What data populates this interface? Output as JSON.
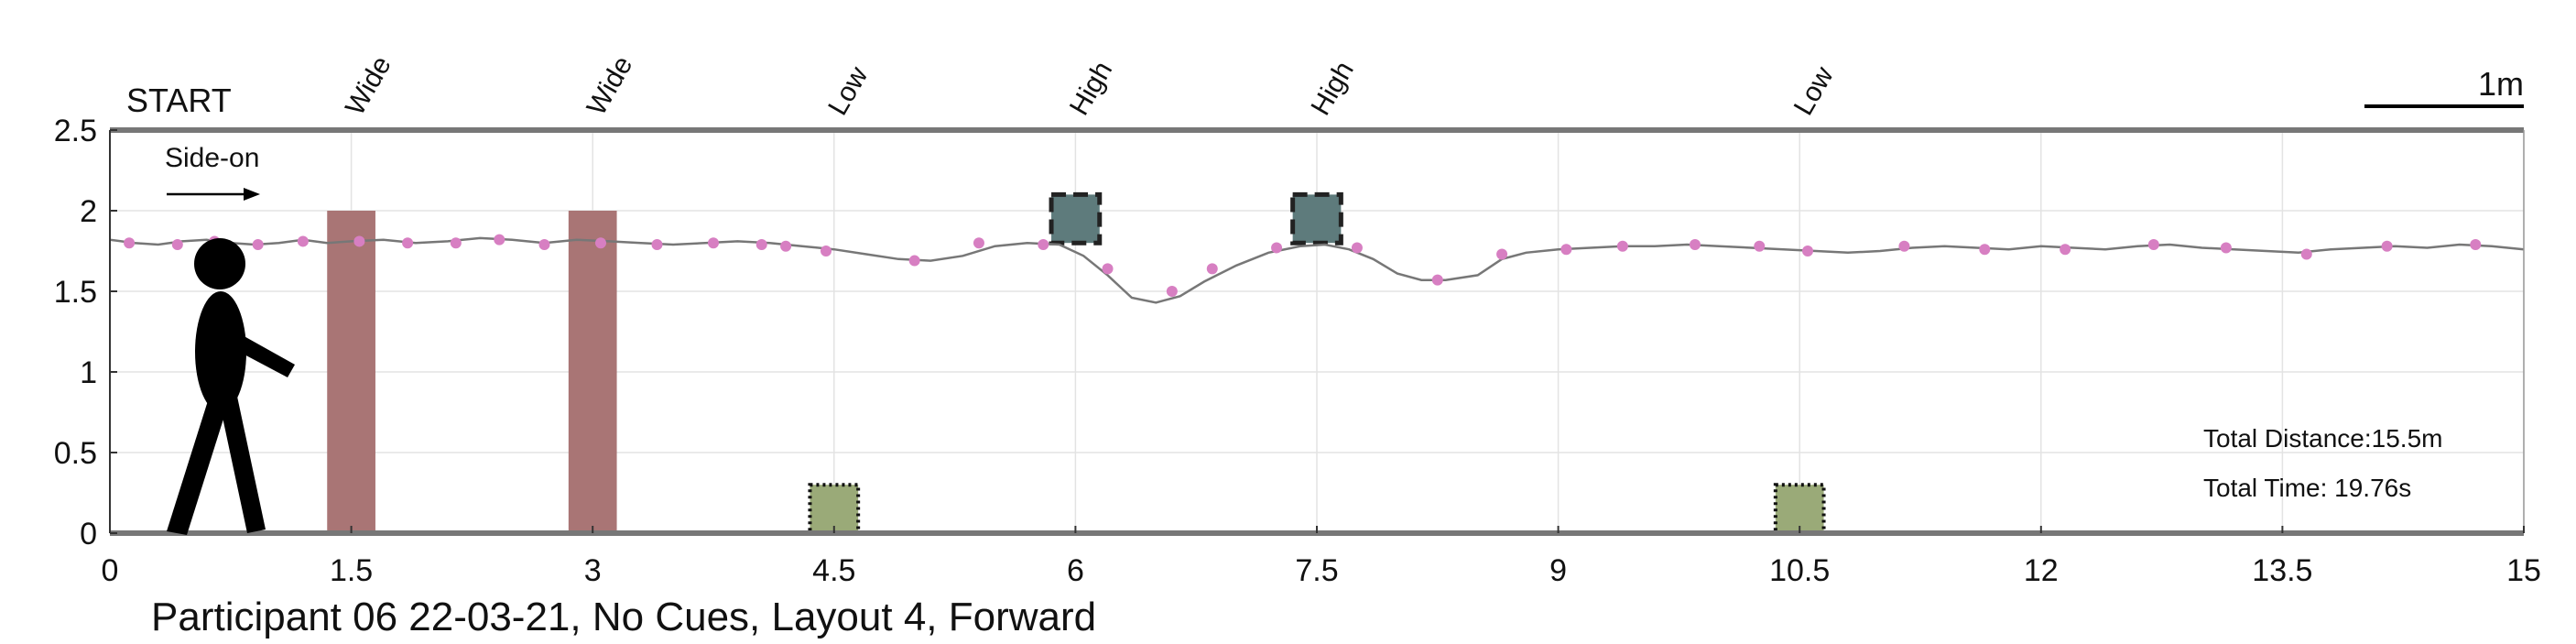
{
  "chart_data": {
    "type": "line",
    "caption": "Participant 06 22-03-21, No Cues, Layout 4, Forward",
    "start_label": "START",
    "direction_label": "Side-on",
    "scale_label": "1m",
    "total_distance": "Total Distance:15.5m",
    "total_time": "Total Time: 19.76s",
    "xlim": [
      0,
      15
    ],
    "ylim": [
      0,
      2.5
    ],
    "x_ticks": [
      0,
      1.5,
      3,
      4.5,
      6,
      7.5,
      9,
      10.5,
      12,
      13.5,
      15
    ],
    "x_tick_labels": [
      "0",
      "1.5",
      "3",
      "4.5",
      "6",
      "7.5",
      "9",
      "10.5",
      "12",
      "13.5",
      "15"
    ],
    "y_ticks": [
      0,
      0.5,
      1,
      1.5,
      2,
      2.5
    ],
    "y_tick_labels": [
      "0",
      "0.5",
      "1",
      "1.5",
      "2",
      "2.5"
    ],
    "grid": true,
    "obstacles": [
      {
        "label": "Wide",
        "type": "wide",
        "x_center": 1.5,
        "width": 0.3,
        "y_bottom": 0,
        "y_top": 2.0,
        "color": "#a97575"
      },
      {
        "label": "Wide",
        "type": "wide",
        "x_center": 3.0,
        "width": 0.3,
        "y_bottom": 0,
        "y_top": 2.0,
        "color": "#a97575"
      },
      {
        "label": "Low",
        "type": "low",
        "x_center": 4.5,
        "width": 0.3,
        "y_bottom": 0,
        "y_top": 0.3,
        "color": "#9aaa78"
      },
      {
        "label": "High",
        "type": "high",
        "x_center": 6.0,
        "width": 0.3,
        "y_bottom": 1.8,
        "y_top": 2.1,
        "color": "#5e7b7c"
      },
      {
        "label": "High",
        "type": "high",
        "x_center": 7.5,
        "width": 0.3,
        "y_bottom": 1.8,
        "y_top": 2.1,
        "color": "#5e7b7c"
      },
      {
        "label": "Low",
        "type": "low",
        "x_center": 10.5,
        "width": 0.3,
        "y_bottom": 0,
        "y_top": 0.3,
        "color": "#9aaa78"
      }
    ],
    "trajectory": {
      "color": "#777777",
      "x": [
        0.0,
        0.15,
        0.3,
        0.45,
        0.6,
        0.75,
        0.9,
        1.05,
        1.2,
        1.35,
        1.5,
        1.7,
        1.9,
        2.1,
        2.3,
        2.5,
        2.7,
        2.9,
        3.1,
        3.3,
        3.5,
        3.7,
        3.9,
        4.1,
        4.3,
        4.5,
        4.7,
        4.9,
        5.1,
        5.3,
        5.5,
        5.7,
        5.9,
        6.05,
        6.2,
        6.35,
        6.5,
        6.65,
        6.8,
        7.0,
        7.2,
        7.4,
        7.55,
        7.7,
        7.85,
        8.0,
        8.15,
        8.3,
        8.5,
        8.65,
        8.8,
        9.0,
        9.2,
        9.4,
        9.6,
        9.8,
        10.0,
        10.2,
        10.4,
        10.6,
        10.8,
        11.0,
        11.2,
        11.4,
        11.6,
        11.8,
        12.0,
        12.2,
        12.4,
        12.6,
        12.8,
        13.0,
        13.2,
        13.4,
        13.6,
        13.8,
        14.0,
        14.2,
        14.4,
        14.6,
        14.8,
        15.0
      ],
      "y": [
        1.82,
        1.8,
        1.79,
        1.81,
        1.82,
        1.8,
        1.79,
        1.8,
        1.82,
        1.8,
        1.81,
        1.82,
        1.8,
        1.81,
        1.83,
        1.82,
        1.8,
        1.82,
        1.81,
        1.8,
        1.79,
        1.8,
        1.81,
        1.8,
        1.78,
        1.76,
        1.73,
        1.7,
        1.69,
        1.72,
        1.78,
        1.8,
        1.79,
        1.72,
        1.6,
        1.46,
        1.43,
        1.47,
        1.56,
        1.66,
        1.74,
        1.78,
        1.79,
        1.76,
        1.7,
        1.61,
        1.57,
        1.57,
        1.6,
        1.7,
        1.74,
        1.76,
        1.77,
        1.78,
        1.78,
        1.79,
        1.78,
        1.77,
        1.76,
        1.75,
        1.74,
        1.75,
        1.77,
        1.78,
        1.77,
        1.76,
        1.78,
        1.77,
        1.76,
        1.78,
        1.79,
        1.77,
        1.76,
        1.75,
        1.74,
        1.76,
        1.77,
        1.78,
        1.77,
        1.79,
        1.78,
        1.76
      ]
    },
    "footsteps": {
      "color": "#d77fc2",
      "x": [
        0.12,
        0.42,
        0.65,
        0.92,
        1.2,
        1.55,
        1.85,
        2.15,
        2.42,
        2.7,
        3.05,
        3.4,
        3.75,
        4.05,
        4.2,
        4.45,
        5.0,
        5.4,
        5.8,
        6.2,
        6.6,
        6.85,
        7.25,
        7.75,
        8.25,
        8.65,
        9.05,
        9.4,
        9.85,
        10.25,
        10.55,
        11.15,
        11.65,
        12.15,
        12.7,
        13.15,
        13.65,
        14.15,
        14.7
      ],
      "y": [
        1.8,
        1.79,
        1.81,
        1.79,
        1.81,
        1.81,
        1.8,
        1.8,
        1.82,
        1.79,
        1.8,
        1.79,
        1.8,
        1.79,
        1.78,
        1.75,
        1.69,
        1.8,
        1.79,
        1.64,
        1.5,
        1.64,
        1.77,
        1.77,
        1.57,
        1.73,
        1.76,
        1.78,
        1.79,
        1.78,
        1.75,
        1.78,
        1.76,
        1.76,
        1.79,
        1.77,
        1.73,
        1.78,
        1.79
      ]
    }
  }
}
